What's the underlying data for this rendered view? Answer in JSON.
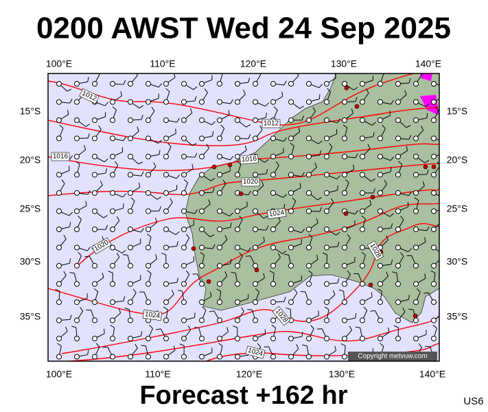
{
  "header": {
    "title": "0200 AWST Wed 24 Sep 2025"
  },
  "map": {
    "top_lon_labels": [
      "100°E",
      "110°E",
      "120°E",
      "130°E",
      "140°E"
    ],
    "bottom_lon_labels": [
      "100°E",
      "110°E",
      "120°E",
      "130°E",
      "140°E"
    ],
    "lat_labels": [
      "15°S",
      "20°S",
      "25°S",
      "30°S",
      "35°S"
    ],
    "isobar_labels": [
      "1012",
      "1012",
      "1016",
      "1016",
      "1020",
      "1024",
      "1020",
      "1028",
      "1024",
      "1028",
      "1024"
    ],
    "copyright": "Copyright metvuw.com"
  },
  "footer": {
    "forecast": "Forecast +162 hr",
    "region": "US6"
  }
}
